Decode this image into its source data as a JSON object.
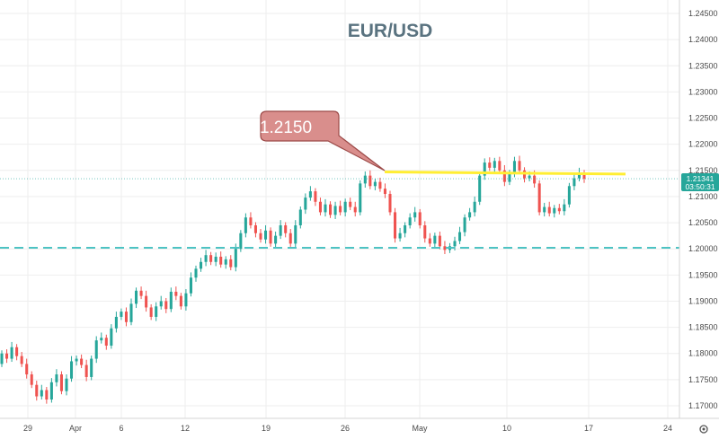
{
  "chart_data": {
    "type": "candlestick",
    "title": "EUR/USD",
    "ylim": [
      1.1685,
      1.2475
    ],
    "y_ticks": [
      "1.24500",
      "1.24000",
      "1.23500",
      "1.23000",
      "1.22500",
      "1.22000",
      "1.21500",
      "1.21000",
      "1.20500",
      "1.20000",
      "1.19500",
      "1.19000",
      "1.18500",
      "1.18000",
      "1.17500",
      "1.17000"
    ],
    "x_ticks": [
      "29",
      "Apr",
      "6",
      "12",
      "19",
      "26",
      "May",
      "10",
      "17",
      "24"
    ],
    "current_price": "1.21341",
    "countdown": "03:50:31",
    "resistance_level": 1.2145,
    "support_level": 1.2002,
    "callout_label": "1.2150",
    "candles": [
      [
        1.178,
        1.18
      ],
      [
        1.18,
        1.179
      ],
      [
        1.179,
        1.1812
      ],
      [
        1.1812,
        1.1795
      ],
      [
        1.1795,
        1.178
      ],
      [
        1.178,
        1.176
      ],
      [
        1.176,
        1.174
      ],
      [
        1.174,
        1.1718
      ],
      [
        1.1718,
        1.173
      ],
      [
        1.173,
        1.1712
      ],
      [
        1.1712,
        1.1745
      ],
      [
        1.1745,
        1.176
      ],
      [
        1.176,
        1.1728
      ],
      [
        1.1728,
        1.1752
      ],
      [
        1.1752,
        1.1785
      ],
      [
        1.1785,
        1.179
      ],
      [
        1.179,
        1.1778
      ],
      [
        1.1778,
        1.1755
      ],
      [
        1.1755,
        1.179
      ],
      [
        1.179,
        1.1825
      ],
      [
        1.1825,
        1.183
      ],
      [
        1.183,
        1.1815
      ],
      [
        1.1815,
        1.1848
      ],
      [
        1.1848,
        1.187
      ],
      [
        1.187,
        1.188
      ],
      [
        1.188,
        1.186
      ],
      [
        1.186,
        1.1895
      ],
      [
        1.1895,
        1.192
      ],
      [
        1.192,
        1.191
      ],
      [
        1.191,
        1.1888
      ],
      [
        1.1888,
        1.187
      ],
      [
        1.187,
        1.189
      ],
      [
        1.189,
        1.19
      ],
      [
        1.19,
        1.1885
      ],
      [
        1.1885,
        1.1918
      ],
      [
        1.1918,
        1.191
      ],
      [
        1.191,
        1.189
      ],
      [
        1.189,
        1.1915
      ],
      [
        1.1915,
        1.1945
      ],
      [
        1.1945,
        1.1962
      ],
      [
        1.1962,
        1.1975
      ],
      [
        1.1975,
        1.1988
      ],
      [
        1.1988,
        1.1975
      ],
      [
        1.1975,
        1.1985
      ],
      [
        1.1985,
        1.197
      ],
      [
        1.197,
        1.198
      ],
      [
        1.198,
        1.1965
      ],
      [
        1.1965,
        1.2
      ],
      [
        1.2,
        1.203
      ],
      [
        1.203,
        1.206
      ],
      [
        1.206,
        1.2045
      ],
      [
        1.2045,
        1.203
      ],
      [
        1.203,
        1.2018
      ],
      [
        1.2018,
        1.2035
      ],
      [
        1.2035,
        1.201
      ],
      [
        1.201,
        1.2025
      ],
      [
        1.2025,
        1.2045
      ],
      [
        1.2045,
        1.203
      ],
      [
        1.203,
        1.201
      ],
      [
        1.201,
        1.2045
      ],
      [
        1.2045,
        1.2075
      ],
      [
        1.2075,
        1.2098
      ],
      [
        1.2098,
        1.211
      ],
      [
        1.211,
        1.209
      ],
      [
        1.209,
        1.207
      ],
      [
        1.207,
        1.2085
      ],
      [
        1.2085,
        1.2065
      ],
      [
        1.2065,
        1.2082
      ],
      [
        1.2082,
        1.207
      ],
      [
        1.207,
        1.209
      ],
      [
        1.209,
        1.208
      ],
      [
        1.208,
        1.207
      ],
      [
        1.207,
        1.2125
      ],
      [
        1.2125,
        1.214
      ],
      [
        1.214,
        1.212
      ],
      [
        1.212,
        1.2128
      ],
      [
        1.2128,
        1.2115
      ],
      [
        1.2115,
        1.2105
      ],
      [
        1.2105,
        1.207
      ],
      [
        1.207,
        1.202
      ],
      [
        1.202,
        1.203
      ],
      [
        1.203,
        1.2045
      ],
      [
        1.2045,
        1.206
      ],
      [
        1.206,
        1.207
      ],
      [
        1.207,
        1.2045
      ],
      [
        1.2045,
        1.202
      ],
      [
        1.202,
        1.201
      ],
      [
        1.201,
        1.2025
      ],
      [
        1.2025,
        1.2005
      ],
      [
        1.2005,
        1.1998
      ],
      [
        1.1998,
        1.2005
      ],
      [
        1.2005,
        1.2015
      ],
      [
        1.2015,
        1.2032
      ],
      [
        1.2032,
        1.206
      ],
      [
        1.206,
        1.207
      ],
      [
        1.207,
        1.209
      ],
      [
        1.209,
        1.214
      ],
      [
        1.214,
        1.2165
      ],
      [
        1.2165,
        1.2155
      ],
      [
        1.2155,
        1.2168
      ],
      [
        1.2168,
        1.215
      ],
      [
        1.215,
        1.2128
      ],
      [
        1.2128,
        1.2145
      ],
      [
        1.2145,
        1.2168
      ],
      [
        1.2168,
        1.215
      ],
      [
        1.215,
        1.2135
      ],
      [
        1.2135,
        1.214
      ],
      [
        1.214,
        1.2125
      ],
      [
        1.2125,
        1.207
      ],
      [
        1.207,
        1.208
      ],
      [
        1.208,
        1.2068
      ],
      [
        1.2068,
        1.2078
      ],
      [
        1.2078,
        1.2072
      ],
      [
        1.2072,
        1.2085
      ],
      [
        1.2085,
        1.212
      ],
      [
        1.212,
        1.2135
      ],
      [
        1.2135,
        1.2145
      ],
      [
        1.2145,
        1.2134
      ]
    ]
  }
}
